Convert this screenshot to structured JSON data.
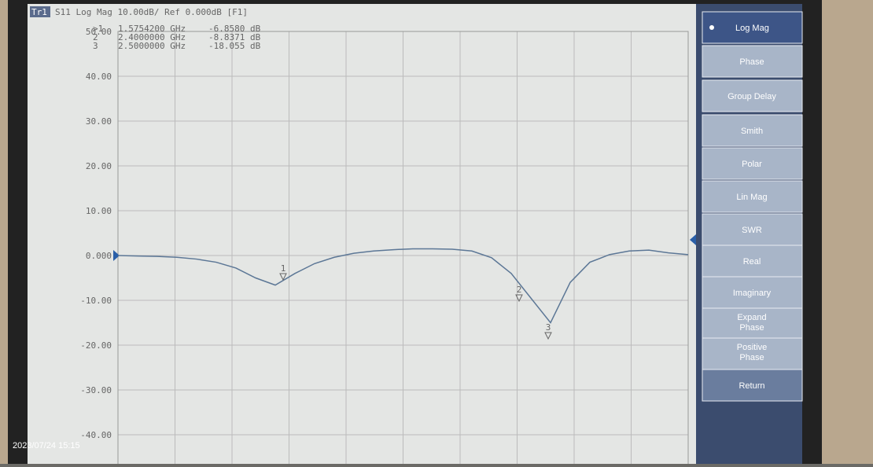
{
  "header": {
    "trace": "Tr1",
    "text": "S11 Log Mag 10.00dB/ Ref 0.000dB [F1]"
  },
  "markers": [
    {
      "id": ">1",
      "freq": "1.5754200 GHz",
      "value": "-6.8580 dB"
    },
    {
      "id": "2",
      "freq": "2.4000000 GHz",
      "value": "-8.8371 dB"
    },
    {
      "id": "3",
      "freq": "2.5000000 GHz",
      "value": "-18.055 dB"
    }
  ],
  "y_labels": [
    "50.00",
    "40.00",
    "30.00",
    "20.00",
    "10.00",
    "0.000",
    "-10.00",
    "-20.00",
    "-30.00",
    "-40.00"
  ],
  "trace": {
    "ylim": [
      -50,
      50
    ],
    "values": [
      0,
      -0.1,
      -0.2,
      -0.4,
      -0.8,
      -1.5,
      -2.8,
      -5,
      -6.6,
      -4,
      -1.8,
      -0.4,
      0.5,
      1.0,
      1.3,
      1.5,
      1.5,
      1.4,
      1.0,
      -0.5,
      -4,
      -9.5,
      -15,
      -6,
      -1.5,
      0.2,
      1.0,
      1.2,
      0.6,
      0.2
    ]
  },
  "plot_markers": [
    "1",
    "2",
    "3"
  ],
  "menu": [
    "Log Mag",
    "Phase",
    "Group Delay",
    "Smith",
    "Polar",
    "Lin Mag",
    "SWR",
    "Real",
    "Imaginary",
    "Expand Phase",
    "Positive Phase",
    "Return"
  ],
  "timestamp": "2023/07/24 15:15"
}
